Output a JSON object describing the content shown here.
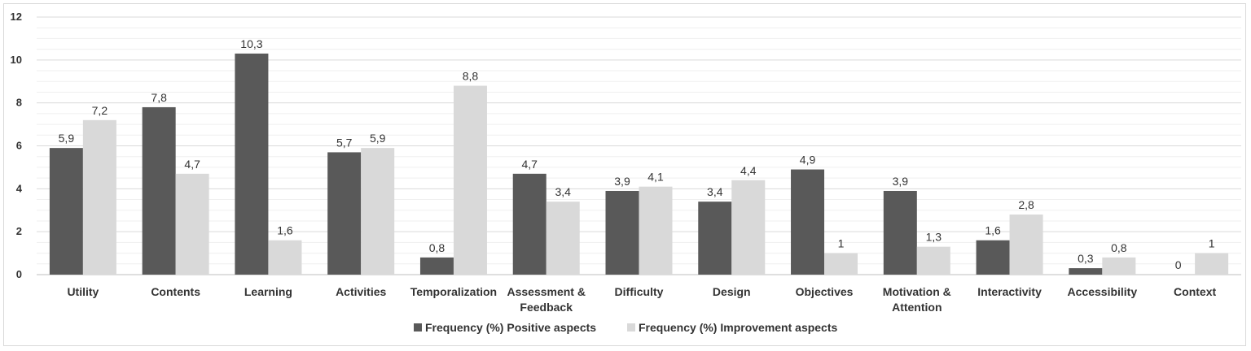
{
  "chart_data": {
    "type": "bar",
    "title": "",
    "xlabel": "",
    "ylabel": "",
    "ylim": [
      0,
      12
    ],
    "yticks": [
      0,
      2,
      4,
      6,
      8,
      10,
      12
    ],
    "grid": true,
    "legend_position": "bottom",
    "categories": [
      [
        "Utility"
      ],
      [
        "Contents"
      ],
      [
        "Learning"
      ],
      [
        "Activities"
      ],
      [
        "Temporalization"
      ],
      [
        "Assessment &",
        "Feedback"
      ],
      [
        "Difficulty"
      ],
      [
        "Design"
      ],
      [
        "Objectives"
      ],
      [
        "Motivation &",
        "Attention"
      ],
      [
        "Interactivity"
      ],
      [
        "Accessibility"
      ],
      [
        "Context"
      ]
    ],
    "series": [
      {
        "name": "Frequency (%) Positive aspects",
        "color": "#595959",
        "values": [
          5.9,
          7.8,
          10.3,
          5.7,
          0.8,
          4.7,
          3.9,
          3.4,
          4.9,
          3.9,
          1.6,
          0.3,
          0
        ],
        "labels": [
          "5,9",
          "7,8",
          "10,3",
          "5,7",
          "0,8",
          "4,7",
          "3,9",
          "3,4",
          "4,9",
          "3,9",
          "1,6",
          "0,3",
          "0"
        ]
      },
      {
        "name": "Frequency (%) Improvement aspects",
        "color": "#d9d9d9",
        "values": [
          7.2,
          4.7,
          1.6,
          5.9,
          8.8,
          3.4,
          4.1,
          4.4,
          1,
          1.3,
          2.8,
          0.8,
          1
        ],
        "labels": [
          "7,2",
          "4,7",
          "1,6",
          "5,9",
          "8,8",
          "3,4",
          "4,1",
          "4,4",
          "1",
          "1,3",
          "2,8",
          "0,8",
          "1"
        ]
      }
    ]
  }
}
